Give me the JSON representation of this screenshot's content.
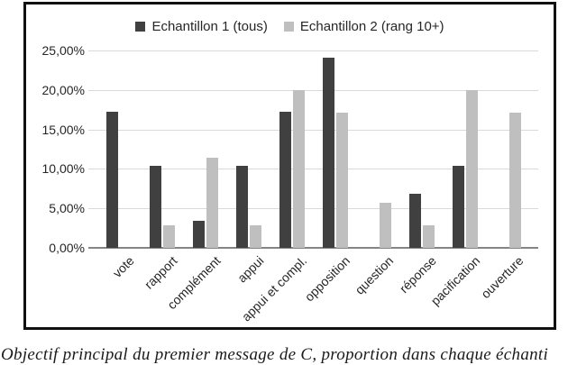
{
  "caption": "Objectif principal du premier message de C, proportion dans chaque échanti",
  "chart_data": {
    "type": "bar",
    "title": "",
    "xlabel": "",
    "ylabel": "",
    "ylim": [
      0,
      25
    ],
    "ytick_step": 5,
    "ytick_labels": [
      "0,00%",
      "5,00%",
      "10,00%",
      "15,00%",
      "20,00%",
      "25,00%"
    ],
    "grid": true,
    "legend_position": "top-center",
    "categories": [
      "vote",
      "rapport",
      "complément",
      "appui",
      "appui et compl.",
      "opposition",
      "question",
      "réponse",
      "pacification",
      "ouverture"
    ],
    "series": [
      {
        "name": "Echantillon 1 (tous)",
        "color": "#404040",
        "values": [
          17.24,
          10.34,
          3.45,
          10.34,
          17.24,
          24.14,
          0,
          6.9,
          10.34,
          0
        ]
      },
      {
        "name": "Echantillon 2 (rang 10+)",
        "color": "#bfbfbf",
        "values": [
          0,
          2.86,
          11.43,
          2.86,
          20.0,
          17.14,
          5.71,
          2.86,
          20.0,
          17.14
        ]
      }
    ],
    "colors": {
      "gridline": "#d9d9d9",
      "axis_line": "#858585",
      "frame_border": "#111111",
      "text": "#262626"
    }
  }
}
